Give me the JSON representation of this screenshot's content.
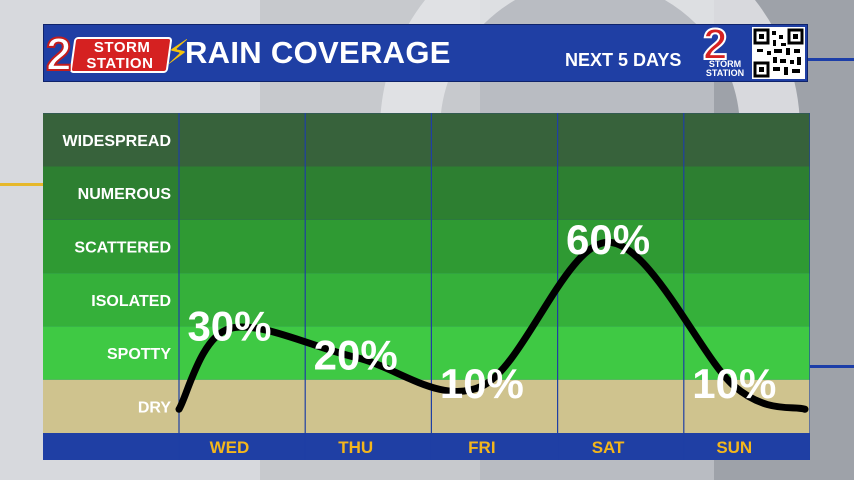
{
  "header": {
    "logo_number": "2",
    "logo_line1": "STORM",
    "logo_line2": "STATION",
    "title": "RAIN COVERAGE",
    "subtitle": "NEXT 5 DAYS",
    "right_logo_number": "2",
    "right_logo_line1": "STORM",
    "right_logo_line2": "STATION"
  },
  "colors": {
    "header_blue": "#1f3fa4",
    "band_widespread": "#37623b",
    "band_numerous": "#2d7f31",
    "band_scattered": "#2f9a33",
    "band_isolated": "#35b03a",
    "band_spotty": "#3fc944",
    "band_dry": "#cfc38e",
    "day_text": "#f3b61c",
    "curve": "#000000"
  },
  "chart_data": {
    "type": "line",
    "title": "RAIN COVERAGE",
    "subtitle": "NEXT 5 DAYS",
    "categories": [
      "WED",
      "THU",
      "FRI",
      "SAT",
      "SUN"
    ],
    "coverage_levels": [
      "DRY",
      "SPOTTY",
      "ISOLATED",
      "SCATTERED",
      "NUMEROUS",
      "WIDESPREAD"
    ],
    "series": [
      {
        "values": [
          30,
          20,
          10,
          60,
          10
        ],
        "labels": [
          "30%",
          "20%",
          "10%",
          "60%",
          "10%"
        ]
      }
    ],
    "ylim": [
      0,
      100
    ],
    "grid": true,
    "legend": "none"
  }
}
